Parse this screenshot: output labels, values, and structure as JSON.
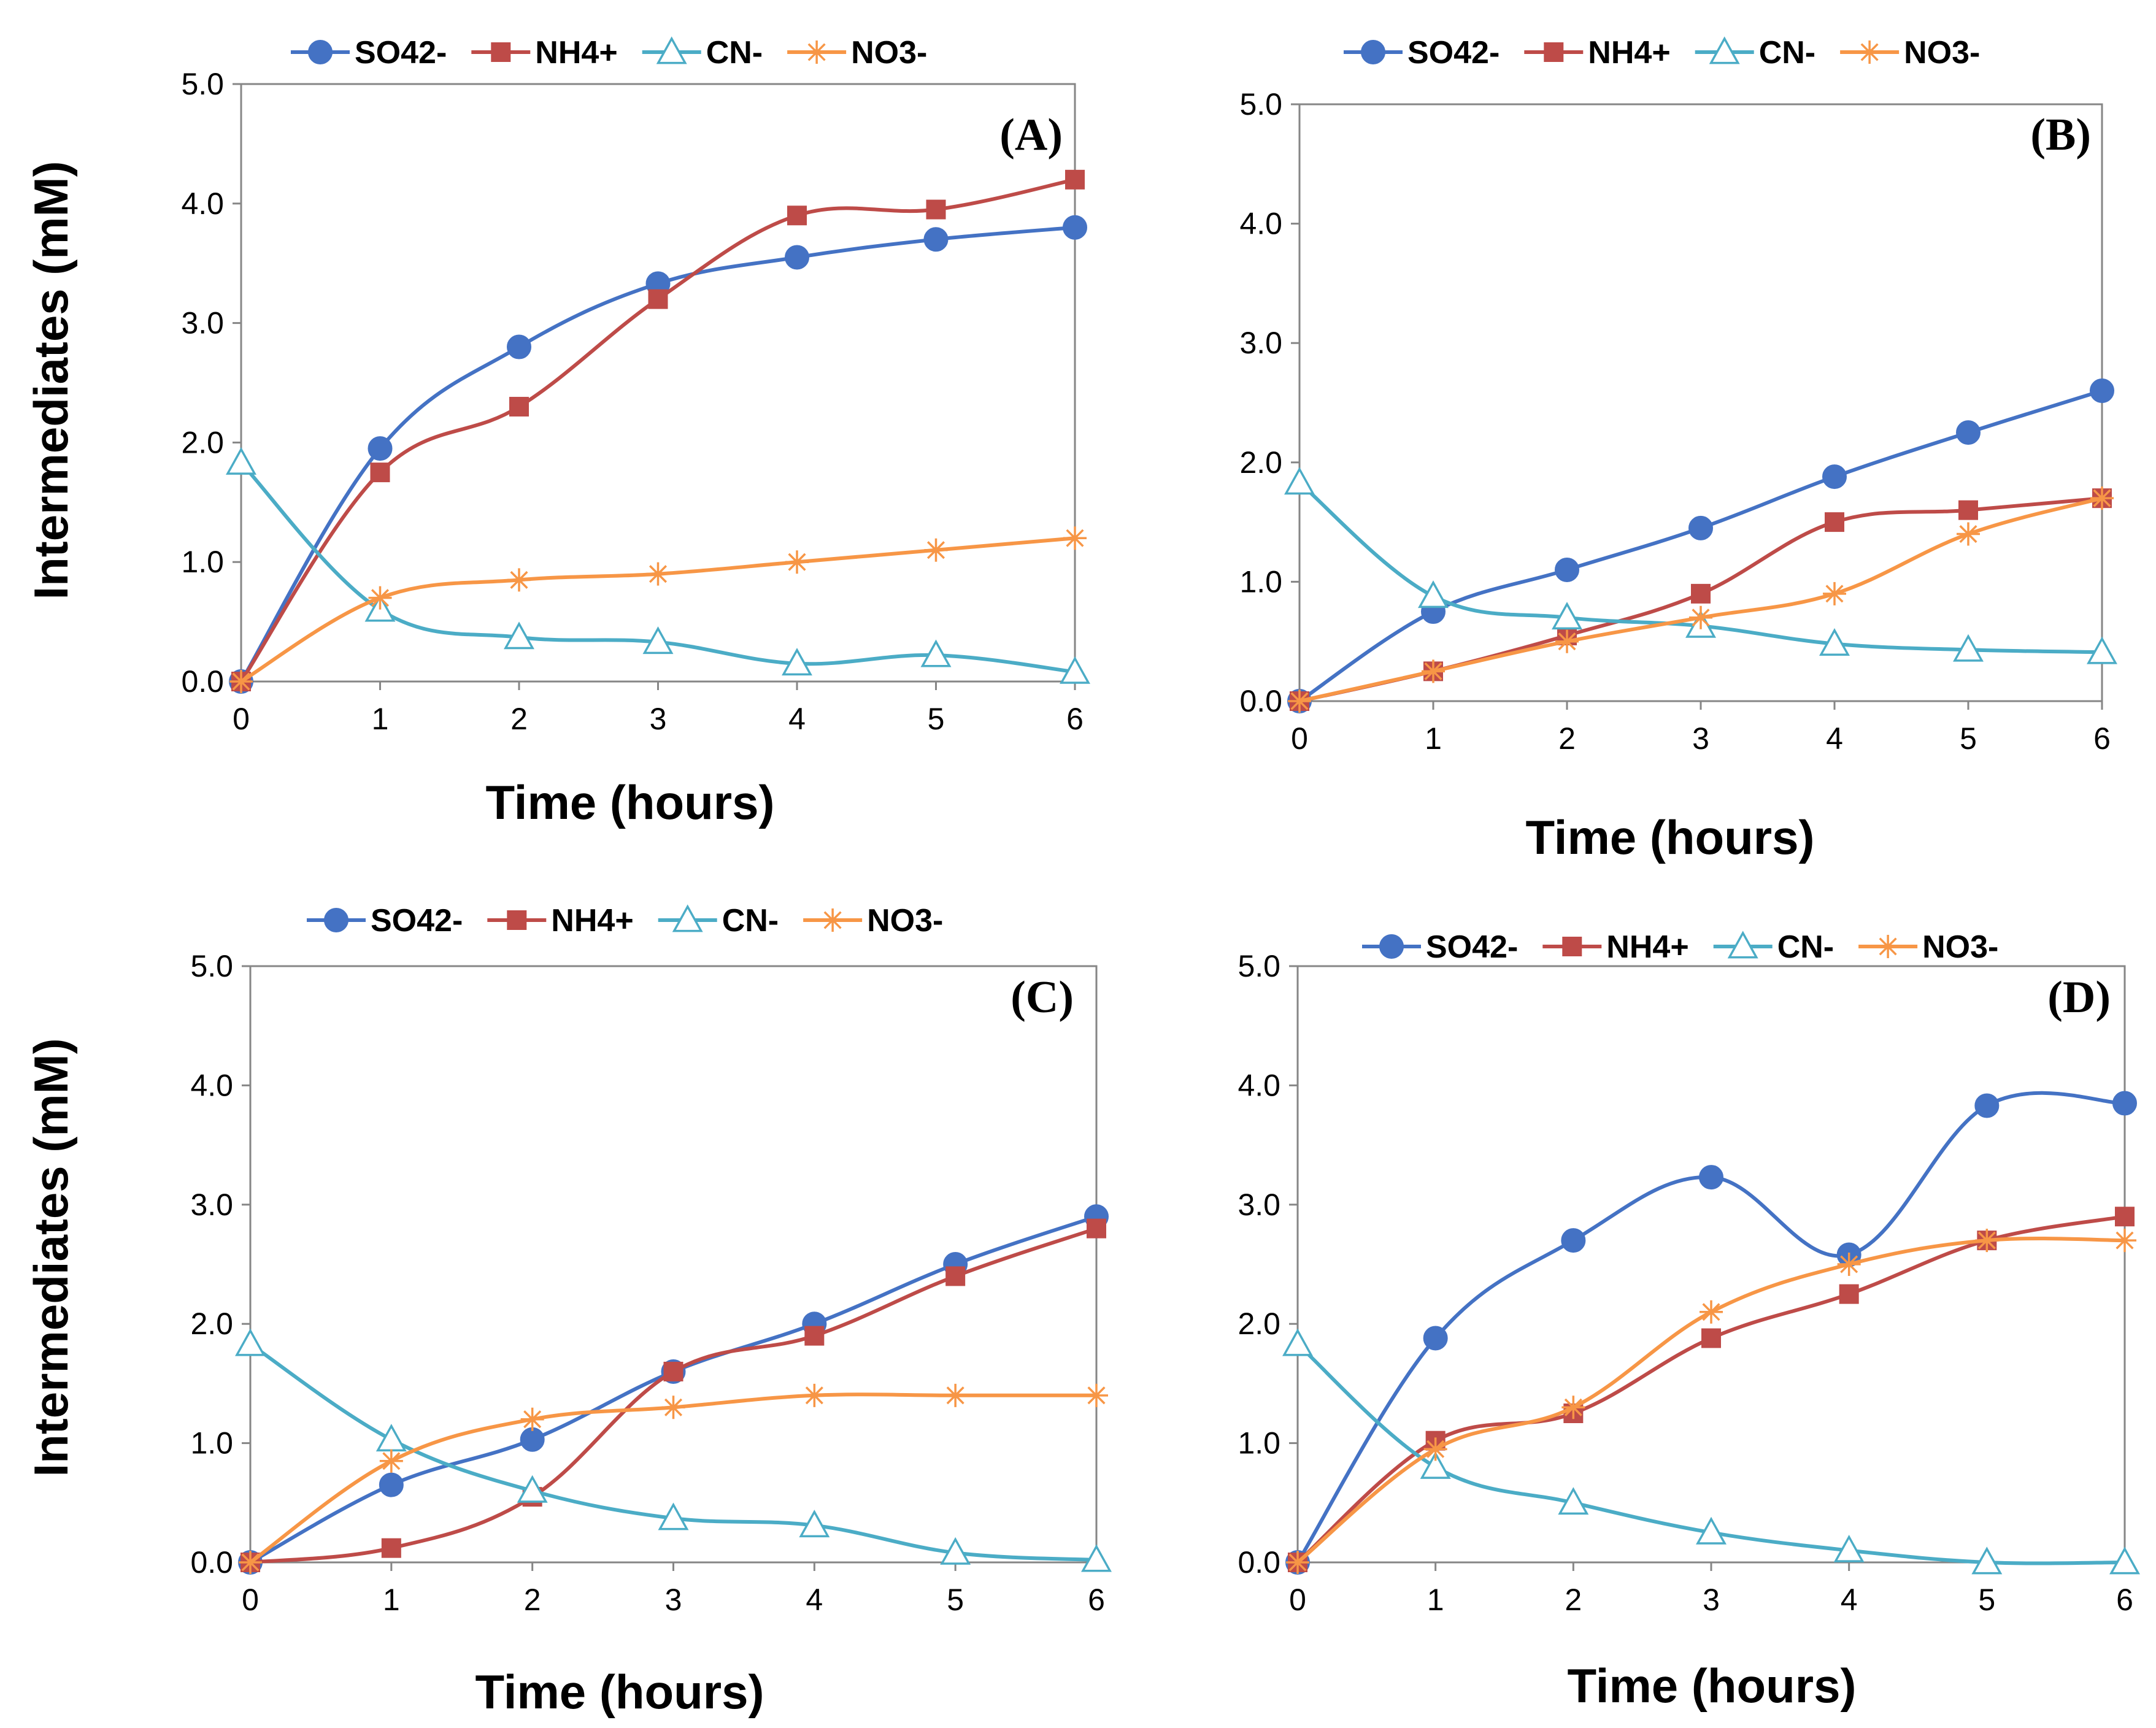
{
  "figure": {
    "y_axis_label": "Intermediates (mM)",
    "x_axis_label": "Time (hours)"
  },
  "chart_data": [
    {
      "type": "line",
      "panel": "(A)",
      "title": "(A)",
      "xlabel": "Time (hours)",
      "ylabel": "Intermediates (mM)",
      "x": [
        0,
        1,
        2,
        3,
        4,
        5,
        6
      ],
      "xlim": [
        0,
        6
      ],
      "ylim": [
        0,
        5
      ],
      "yticks": [
        "0.0",
        "1.0",
        "2.0",
        "3.0",
        "4.0",
        "5.0"
      ],
      "xticks": [
        "0",
        "1",
        "2",
        "3",
        "4",
        "5",
        "6"
      ],
      "legend": "top",
      "series": [
        {
          "name": "SO42-",
          "color": "#4472C4",
          "marker": "circle",
          "values": [
            0,
            1.95,
            2.8,
            3.33,
            3.55,
            3.7,
            3.8
          ]
        },
        {
          "name": "NH4+",
          "color": "#BE4B48",
          "marker": "square",
          "values": [
            0,
            1.75,
            2.3,
            3.2,
            3.9,
            3.95,
            4.2
          ]
        },
        {
          "name": "CN-",
          "color": "#4BACC6",
          "marker": "triangle",
          "values": [
            1.83,
            0.6,
            0.37,
            0.33,
            0.15,
            0.22,
            0.08
          ]
        },
        {
          "name": "NO3-",
          "color": "#F79646",
          "marker": "star",
          "values": [
            0,
            0.7,
            0.85,
            0.9,
            1.0,
            1.1,
            1.2
          ]
        }
      ]
    },
    {
      "type": "line",
      "panel": "(B)",
      "title": "(B)",
      "xlabel": "Time (hours)",
      "ylabel": "",
      "x": [
        0,
        1,
        2,
        3,
        4,
        5,
        6
      ],
      "xlim": [
        0,
        6
      ],
      "ylim": [
        0,
        5
      ],
      "yticks": [
        "0.0",
        "1.0",
        "2.0",
        "3.0",
        "4.0",
        "5.0"
      ],
      "xticks": [
        "0",
        "1",
        "2",
        "3",
        "4",
        "5",
        "6"
      ],
      "legend": "top",
      "series": [
        {
          "name": "SO42-",
          "color": "#4472C4",
          "marker": "circle",
          "values": [
            0,
            0.75,
            1.1,
            1.45,
            1.88,
            2.25,
            2.6
          ]
        },
        {
          "name": "NH4+",
          "color": "#BE4B48",
          "marker": "square",
          "values": [
            0,
            0.25,
            0.55,
            0.9,
            1.5,
            1.6,
            1.7
          ]
        },
        {
          "name": "CN-",
          "color": "#4BACC6",
          "marker": "triangle",
          "values": [
            1.83,
            0.88,
            0.7,
            0.63,
            0.48,
            0.43,
            0.41
          ]
        },
        {
          "name": "NO3-",
          "color": "#F79646",
          "marker": "star",
          "values": [
            0,
            0.25,
            0.5,
            0.7,
            0.9,
            1.4,
            1.7
          ]
        }
      ]
    },
    {
      "type": "line",
      "panel": "(C)",
      "title": "(C)",
      "xlabel": "Time (hours)",
      "ylabel": "Intermediates (mM)",
      "x": [
        0,
        1,
        2,
        3,
        4,
        5,
        6
      ],
      "xlim": [
        0,
        6
      ],
      "ylim": [
        0,
        5
      ],
      "yticks": [
        "0.0",
        "1.0",
        "2.0",
        "3.0",
        "4.0",
        "5.0"
      ],
      "xticks": [
        "0",
        "1",
        "2",
        "3",
        "4",
        "5",
        "6"
      ],
      "legend": "top",
      "series": [
        {
          "name": "SO42-",
          "color": "#4472C4",
          "marker": "circle",
          "values": [
            0,
            0.65,
            1.03,
            1.6,
            2.0,
            2.5,
            2.9
          ]
        },
        {
          "name": "NH4+",
          "color": "#BE4B48",
          "marker": "square",
          "values": [
            0,
            0.12,
            0.55,
            1.6,
            1.9,
            2.4,
            2.8
          ]
        },
        {
          "name": "CN-",
          "color": "#4BACC6",
          "marker": "triangle",
          "values": [
            1.83,
            1.03,
            0.6,
            0.37,
            0.31,
            0.08,
            0.02
          ]
        },
        {
          "name": "NO3-",
          "color": "#F79646",
          "marker": "star",
          "values": [
            0,
            0.85,
            1.2,
            1.3,
            1.4,
            1.4,
            1.4
          ]
        }
      ]
    },
    {
      "type": "line",
      "panel": "(D)",
      "title": "(D)",
      "xlabel": "Time (hours)",
      "ylabel": "",
      "x": [
        0,
        1,
        2,
        3,
        4,
        5,
        6
      ],
      "xlim": [
        0,
        6
      ],
      "ylim": [
        0,
        5
      ],
      "yticks": [
        "0.0",
        "1.0",
        "2.0",
        "3.0",
        "4.0",
        "5.0"
      ],
      "xticks": [
        "0",
        "1",
        "2",
        "3",
        "4",
        "5",
        "6"
      ],
      "legend": "top",
      "series": [
        {
          "name": "SO42-",
          "color": "#4472C4",
          "marker": "circle",
          "values": [
            0,
            1.88,
            2.7,
            3.23,
            2.58,
            3.83,
            3.85
          ]
        },
        {
          "name": "NH4+",
          "color": "#BE4B48",
          "marker": "square",
          "values": [
            0,
            1.02,
            1.25,
            1.88,
            2.25,
            2.7,
            2.9
          ]
        },
        {
          "name": "CN-",
          "color": "#4BACC6",
          "marker": "triangle",
          "values": [
            1.83,
            0.8,
            0.5,
            0.25,
            0.1,
            0.0,
            0.0
          ]
        },
        {
          "name": "NO3-",
          "color": "#F79646",
          "marker": "star",
          "values": [
            0,
            0.95,
            1.3,
            2.1,
            2.5,
            2.7,
            2.7
          ]
        }
      ]
    }
  ]
}
